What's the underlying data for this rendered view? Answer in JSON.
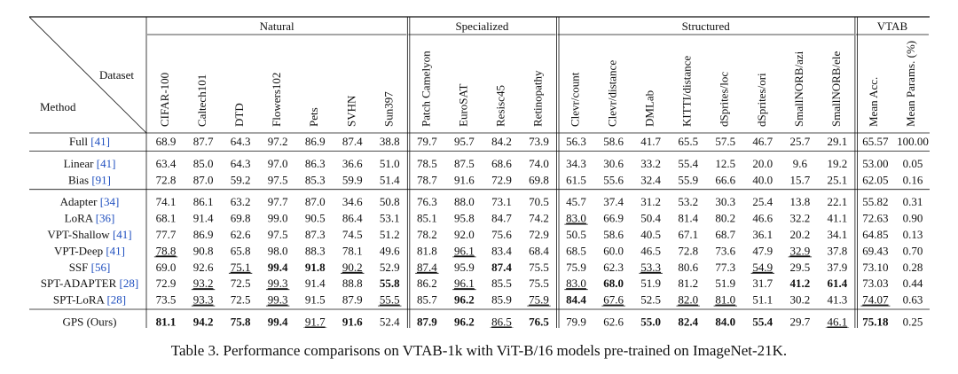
{
  "table": {
    "corner": {
      "dataset": "Dataset",
      "method": "Method"
    },
    "groups": [
      "Natural",
      "Specialized",
      "Structured",
      "VTAB"
    ],
    "columns": [
      "CIFAR-100",
      "Caltech101",
      "DTD",
      "Flowers102",
      "Pets",
      "SVHN",
      "Sun397",
      "Patch Camelyon",
      "EuroSAT",
      "Resisc45",
      "Retinopathy",
      "Clevr/count",
      "Clevr/distance",
      "DMLab",
      "KITTI/distance",
      "dSprites/loc",
      "dSprites/ori",
      "SmallNORB/azi",
      "SmallNORB/ele",
      "Mean Acc.",
      "Mean Params. (%)"
    ],
    "sections": [
      {
        "rows": [
          {
            "method": "Full",
            "ref": "[41]",
            "values": [
              "68.9",
              "87.7",
              "64.3",
              "97.2",
              "86.9",
              "87.4",
              "38.8",
              "79.7",
              "95.7",
              "84.2",
              "73.9",
              "56.3",
              "58.6",
              "41.7",
              "65.5",
              "57.5",
              "46.7",
              "25.7",
              "29.1",
              "65.57",
              "100.00"
            ],
            "bold": [],
            "underline": []
          }
        ]
      },
      {
        "rows": [
          {
            "method": "Linear",
            "ref": "[41]",
            "values": [
              "63.4",
              "85.0",
              "64.3",
              "97.0",
              "86.3",
              "36.6",
              "51.0",
              "78.5",
              "87.5",
              "68.6",
              "74.0",
              "34.3",
              "30.6",
              "33.2",
              "55.4",
              "12.5",
              "20.0",
              "9.6",
              "19.2",
              "53.00",
              "0.05"
            ],
            "bold": [],
            "underline": []
          },
          {
            "method": "Bias",
            "ref": "[91]",
            "values": [
              "72.8",
              "87.0",
              "59.2",
              "97.5",
              "85.3",
              "59.9",
              "51.4",
              "78.7",
              "91.6",
              "72.9",
              "69.8",
              "61.5",
              "55.6",
              "32.4",
              "55.9",
              "66.6",
              "40.0",
              "15.7",
              "25.1",
              "62.05",
              "0.16"
            ],
            "bold": [],
            "underline": []
          }
        ]
      },
      {
        "rows": [
          {
            "method": "Adapter",
            "ref": "[34]",
            "values": [
              "74.1",
              "86.1",
              "63.2",
              "97.7",
              "87.0",
              "34.6",
              "50.8",
              "76.3",
              "88.0",
              "73.1",
              "70.5",
              "45.7",
              "37.4",
              "31.2",
              "53.2",
              "30.3",
              "25.4",
              "13.8",
              "22.1",
              "55.82",
              "0.31"
            ],
            "bold": [],
            "underline": []
          },
          {
            "method": "LoRA",
            "ref": "[36]",
            "values": [
              "68.1",
              "91.4",
              "69.8",
              "99.0",
              "90.5",
              "86.4",
              "53.1",
              "85.1",
              "95.8",
              "84.7",
              "74.2",
              "83.0",
              "66.9",
              "50.4",
              "81.4",
              "80.2",
              "46.6",
              "32.2",
              "41.1",
              "72.63",
              "0.90"
            ],
            "bold": [],
            "underline": [
              11
            ]
          },
          {
            "method": "VPT-Shallow",
            "ref": "[41]",
            "values": [
              "77.7",
              "86.9",
              "62.6",
              "97.5",
              "87.3",
              "74.5",
              "51.2",
              "78.2",
              "92.0",
              "75.6",
              "72.9",
              "50.5",
              "58.6",
              "40.5",
              "67.1",
              "68.7",
              "36.1",
              "20.2",
              "34.1",
              "64.85",
              "0.13"
            ],
            "bold": [],
            "underline": []
          },
          {
            "method": "VPT-Deep",
            "ref": "[41]",
            "values": [
              "78.8",
              "90.8",
              "65.8",
              "98.0",
              "88.3",
              "78.1",
              "49.6",
              "81.8",
              "96.1",
              "83.4",
              "68.4",
              "68.5",
              "60.0",
              "46.5",
              "72.8",
              "73.6",
              "47.9",
              "32.9",
              "37.8",
              "69.43",
              "0.70"
            ],
            "bold": [],
            "underline": [
              0,
              8,
              17
            ]
          },
          {
            "method": "SSF",
            "ref": "[56]",
            "values": [
              "69.0",
              "92.6",
              "75.1",
              "99.4",
              "91.8",
              "90.2",
              "52.9",
              "87.4",
              "95.9",
              "87.4",
              "75.5",
              "75.9",
              "62.3",
              "53.3",
              "80.6",
              "77.3",
              "54.9",
              "29.5",
              "37.9",
              "73.10",
              "0.28"
            ],
            "bold": [
              3,
              4,
              9
            ],
            "underline": [
              2,
              5,
              7,
              13,
              16
            ]
          },
          {
            "method": "SPT-ADAPTER",
            "ref": "[28]",
            "values": [
              "72.9",
              "93.2",
              "72.5",
              "99.3",
              "91.4",
              "88.8",
              "55.8",
              "86.2",
              "96.1",
              "85.5",
              "75.5",
              "83.0",
              "68.0",
              "51.9",
              "81.2",
              "51.9",
              "31.7",
              "41.2",
              "61.4",
              "73.03",
              "0.44"
            ],
            "bold": [
              6,
              12,
              17,
              18
            ],
            "underline": [
              1,
              3,
              8,
              11
            ]
          },
          {
            "method": "SPT-LoRA",
            "ref": "[28]",
            "values": [
              "73.5",
              "93.3",
              "72.5",
              "99.3",
              "91.5",
              "87.9",
              "55.5",
              "85.7",
              "96.2",
              "85.9",
              "75.9",
              "84.4",
              "67.6",
              "52.5",
              "82.0",
              "81.0",
              "51.1",
              "30.2",
              "41.3",
              "74.07",
              "0.63"
            ],
            "bold": [
              8,
              11
            ],
            "underline": [
              1,
              3,
              6,
              10,
              12,
              14,
              15,
              19
            ]
          }
        ]
      },
      {
        "rows": [
          {
            "method": "GPS (Ours)",
            "ref": "",
            "values": [
              "81.1",
              "94.2",
              "75.8",
              "99.4",
              "91.7",
              "91.6",
              "52.4",
              "87.9",
              "96.2",
              "86.5",
              "76.5",
              "79.9",
              "62.6",
              "55.0",
              "82.4",
              "84.0",
              "55.4",
              "29.7",
              "46.1",
              "75.18",
              "0.25"
            ],
            "bold": [
              0,
              1,
              2,
              3,
              5,
              7,
              8,
              10,
              13,
              14,
              15,
              16,
              19
            ],
            "underline": [
              4,
              9,
              18
            ]
          }
        ]
      }
    ]
  },
  "caption": "Table 3. Performance comparisons on VTAB-1k with ViT-B/16 models pre-trained on ImageNet-21K.",
  "colors": {
    "ink": "#111111",
    "citation": "#1f4fbf",
    "background": "#ffffff"
  }
}
